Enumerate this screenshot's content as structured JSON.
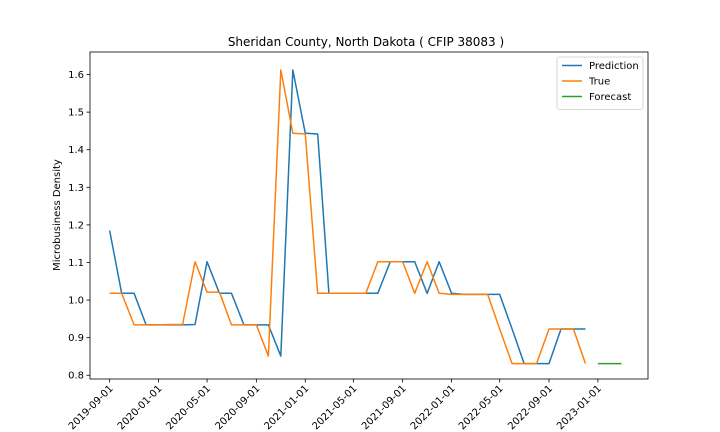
{
  "chart_data": {
    "type": "line",
    "title": "Sheridan County, North Dakota ( CFIP 38083 )",
    "xlabel": "",
    "ylabel": "Microbusiness Density",
    "xlim": [
      "2019-07-14",
      "2023-05-06"
    ],
    "ylim": [
      0.79,
      1.66
    ],
    "x_ticks": [
      "2019-09-01",
      "2020-01-01",
      "2020-05-01",
      "2020-09-01",
      "2021-01-01",
      "2021-05-01",
      "2021-09-01",
      "2022-01-01",
      "2022-05-01",
      "2022-09-01",
      "2023-01-01"
    ],
    "y_ticks": [
      "0.8",
      "0.9",
      "1.0",
      "1.1",
      "1.2",
      "1.3",
      "1.4",
      "1.5",
      "1.6"
    ],
    "legend_position": "top-right",
    "grid": false,
    "series": [
      {
        "name": "Prediction",
        "color": "#1f77b4",
        "points": [
          [
            "2019-09-01",
            1.185
          ],
          [
            "2019-10-01",
            1.018
          ],
          [
            "2019-11-01",
            1.018
          ],
          [
            "2019-12-01",
            0.934
          ],
          [
            "2020-01-01",
            0.934
          ],
          [
            "2020-02-01",
            0.934
          ],
          [
            "2020-03-01",
            0.934
          ],
          [
            "2020-04-01",
            0.935
          ],
          [
            "2020-05-01",
            1.102
          ],
          [
            "2020-06-01",
            1.018
          ],
          [
            "2020-07-01",
            1.018
          ],
          [
            "2020-08-01",
            0.934
          ],
          [
            "2020-09-01",
            0.934
          ],
          [
            "2020-10-01",
            0.934
          ],
          [
            "2020-11-01",
            0.851
          ],
          [
            "2020-12-01",
            1.612
          ],
          [
            "2021-01-01",
            1.444
          ],
          [
            "2021-02-01",
            1.442
          ],
          [
            "2021-03-01",
            1.018
          ],
          [
            "2021-04-01",
            1.018
          ],
          [
            "2021-05-01",
            1.018
          ],
          [
            "2021-06-01",
            1.018
          ],
          [
            "2021-07-01",
            1.018
          ],
          [
            "2021-08-01",
            1.102
          ],
          [
            "2021-09-01",
            1.102
          ],
          [
            "2021-10-01",
            1.102
          ],
          [
            "2021-11-01",
            1.018
          ],
          [
            "2021-12-01",
            1.102
          ],
          [
            "2022-01-01",
            1.018
          ],
          [
            "2022-02-01",
            1.015
          ],
          [
            "2022-03-01",
            1.015
          ],
          [
            "2022-04-01",
            1.015
          ],
          [
            "2022-05-01",
            1.015
          ],
          [
            "2022-06-01",
            0.923
          ],
          [
            "2022-07-01",
            0.831
          ],
          [
            "2022-08-01",
            0.831
          ],
          [
            "2022-09-01",
            0.831
          ],
          [
            "2022-10-01",
            0.923
          ],
          [
            "2022-11-01",
            0.923
          ],
          [
            "2022-12-01",
            0.923
          ]
        ]
      },
      {
        "name": "True",
        "color": "#ff7f0e",
        "points": [
          [
            "2019-09-01",
            1.018
          ],
          [
            "2019-10-01",
            1.018
          ],
          [
            "2019-11-01",
            0.934
          ],
          [
            "2019-12-01",
            0.934
          ],
          [
            "2020-01-01",
            0.934
          ],
          [
            "2020-02-01",
            0.935
          ],
          [
            "2020-03-01",
            0.935
          ],
          [
            "2020-04-01",
            1.102
          ],
          [
            "2020-05-01",
            1.021
          ],
          [
            "2020-06-01",
            1.021
          ],
          [
            "2020-07-01",
            0.934
          ],
          [
            "2020-08-01",
            0.934
          ],
          [
            "2020-09-01",
            0.934
          ],
          [
            "2020-10-01",
            0.851
          ],
          [
            "2020-11-01",
            1.612
          ],
          [
            "2020-12-01",
            1.444
          ],
          [
            "2021-01-01",
            1.442
          ],
          [
            "2021-02-01",
            1.018
          ],
          [
            "2021-03-01",
            1.018
          ],
          [
            "2021-04-01",
            1.018
          ],
          [
            "2021-05-01",
            1.018
          ],
          [
            "2021-06-01",
            1.018
          ],
          [
            "2021-07-01",
            1.102
          ],
          [
            "2021-08-01",
            1.102
          ],
          [
            "2021-09-01",
            1.102
          ],
          [
            "2021-10-01",
            1.018
          ],
          [
            "2021-11-01",
            1.102
          ],
          [
            "2021-12-01",
            1.018
          ],
          [
            "2022-01-01",
            1.015
          ],
          [
            "2022-02-01",
            1.015
          ],
          [
            "2022-03-01",
            1.015
          ],
          [
            "2022-04-01",
            1.015
          ],
          [
            "2022-05-01",
            0.923
          ],
          [
            "2022-06-01",
            0.831
          ],
          [
            "2022-07-01",
            0.831
          ],
          [
            "2022-08-01",
            0.831
          ],
          [
            "2022-09-01",
            0.923
          ],
          [
            "2022-10-01",
            0.923
          ],
          [
            "2022-11-01",
            0.923
          ],
          [
            "2022-12-01",
            0.831
          ]
        ]
      },
      {
        "name": "Forecast",
        "color": "#2ca02c",
        "points": [
          [
            "2023-01-01",
            0.831
          ],
          [
            "2023-02-01",
            0.831
          ],
          [
            "2023-03-01",
            0.831
          ]
        ]
      }
    ]
  }
}
